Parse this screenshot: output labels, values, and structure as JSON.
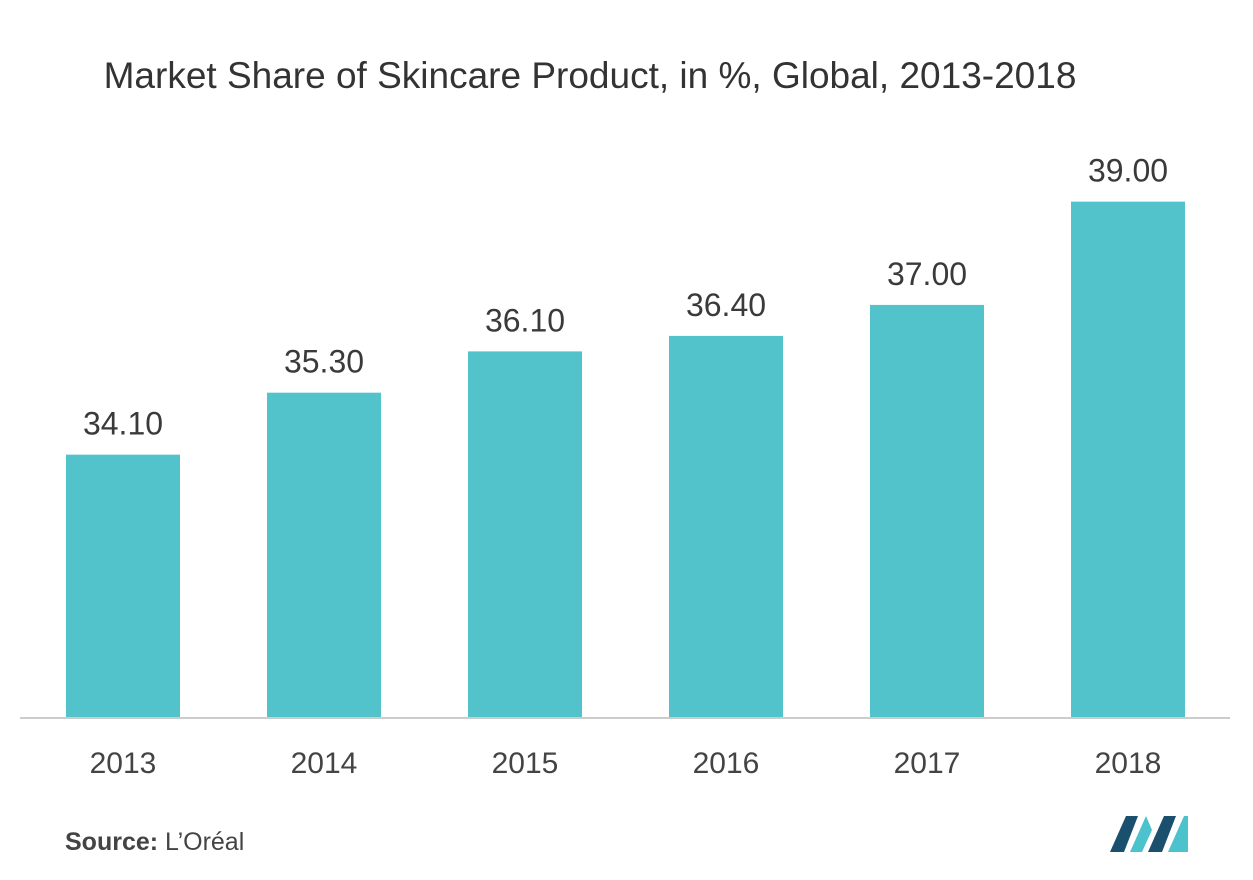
{
  "chart_data": {
    "type": "bar",
    "title": "Market Share of Skincare Product, in %, Global, 2013-2018",
    "categories": [
      "2013",
      "2014",
      "2015",
      "2016",
      "2017",
      "2018"
    ],
    "values": [
      34.1,
      35.3,
      36.1,
      36.4,
      37.0,
      39.0
    ],
    "value_labels": [
      "34.10",
      "35.30",
      "36.10",
      "36.40",
      "37.00",
      "39.00"
    ],
    "xlabel": "",
    "ylabel": "",
    "ylim": [
      29,
      40
    ],
    "grid": false,
    "legend": "none",
    "bar_color": "#52c3ca"
  },
  "source": {
    "label": "Source:",
    "value": "L’Oréal"
  },
  "colors": {
    "bar": "#52c3ca",
    "axis": "#cccccc",
    "logo_dark": "#1a4f6e",
    "logo_light": "#4cc2cc"
  }
}
